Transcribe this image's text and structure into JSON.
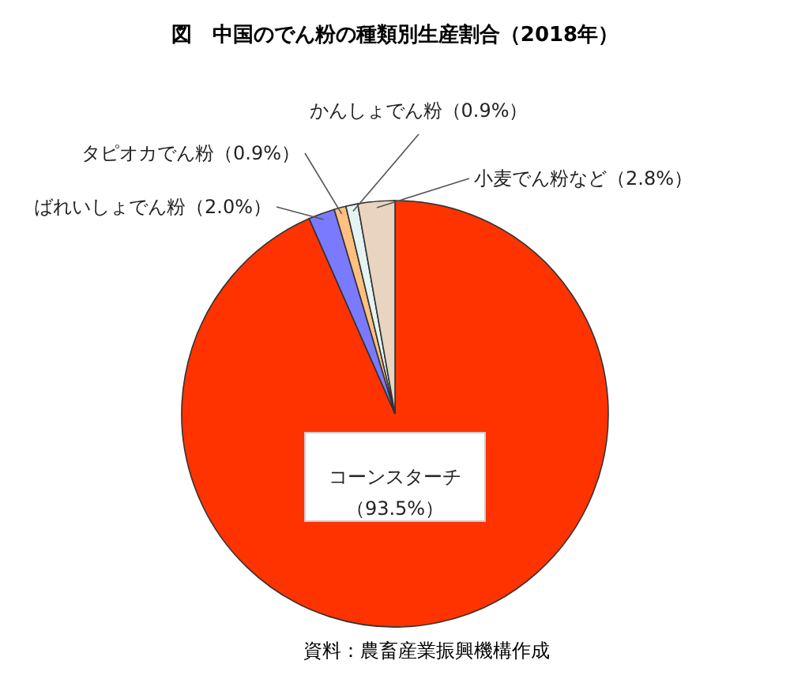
{
  "chart_data": {
    "type": "pie",
    "title": "図　中国のでん粉の種類別生産割合（2018年）",
    "categories": [
      "コーンスターチ",
      "ばれいしょでん粉",
      "タピオカでん粉",
      "かんしょでん粉",
      "小麦でん粉など"
    ],
    "values": [
      93.5,
      2.0,
      0.9,
      0.9,
      2.8
    ],
    "colors": [
      "#ff3300",
      "#7a7aff",
      "#ffc080",
      "#e4f4f2",
      "#e8d4c0"
    ],
    "value_labels": [
      "（93.5%）",
      "（2.0%）",
      "（0.9%）",
      "（0.9%）",
      "（2.8%）"
    ],
    "annotations": [
      "資料：農畜産業振興機構作成"
    ]
  }
}
